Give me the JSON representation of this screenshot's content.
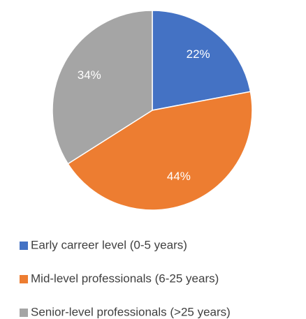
{
  "chart_data": {
    "type": "pie",
    "categories": [
      "Early carreer level (0-5 years)",
      "Mid-level professionals (6-25 years)",
      "Senior-level professionals (>25 years)"
    ],
    "values": [
      22,
      44,
      34
    ],
    "value_labels": [
      "22%",
      "44%",
      "34%"
    ],
    "colors": [
      "#4472c4",
      "#ed7d31",
      "#a5a5a5"
    ],
    "legend": "bottom"
  }
}
